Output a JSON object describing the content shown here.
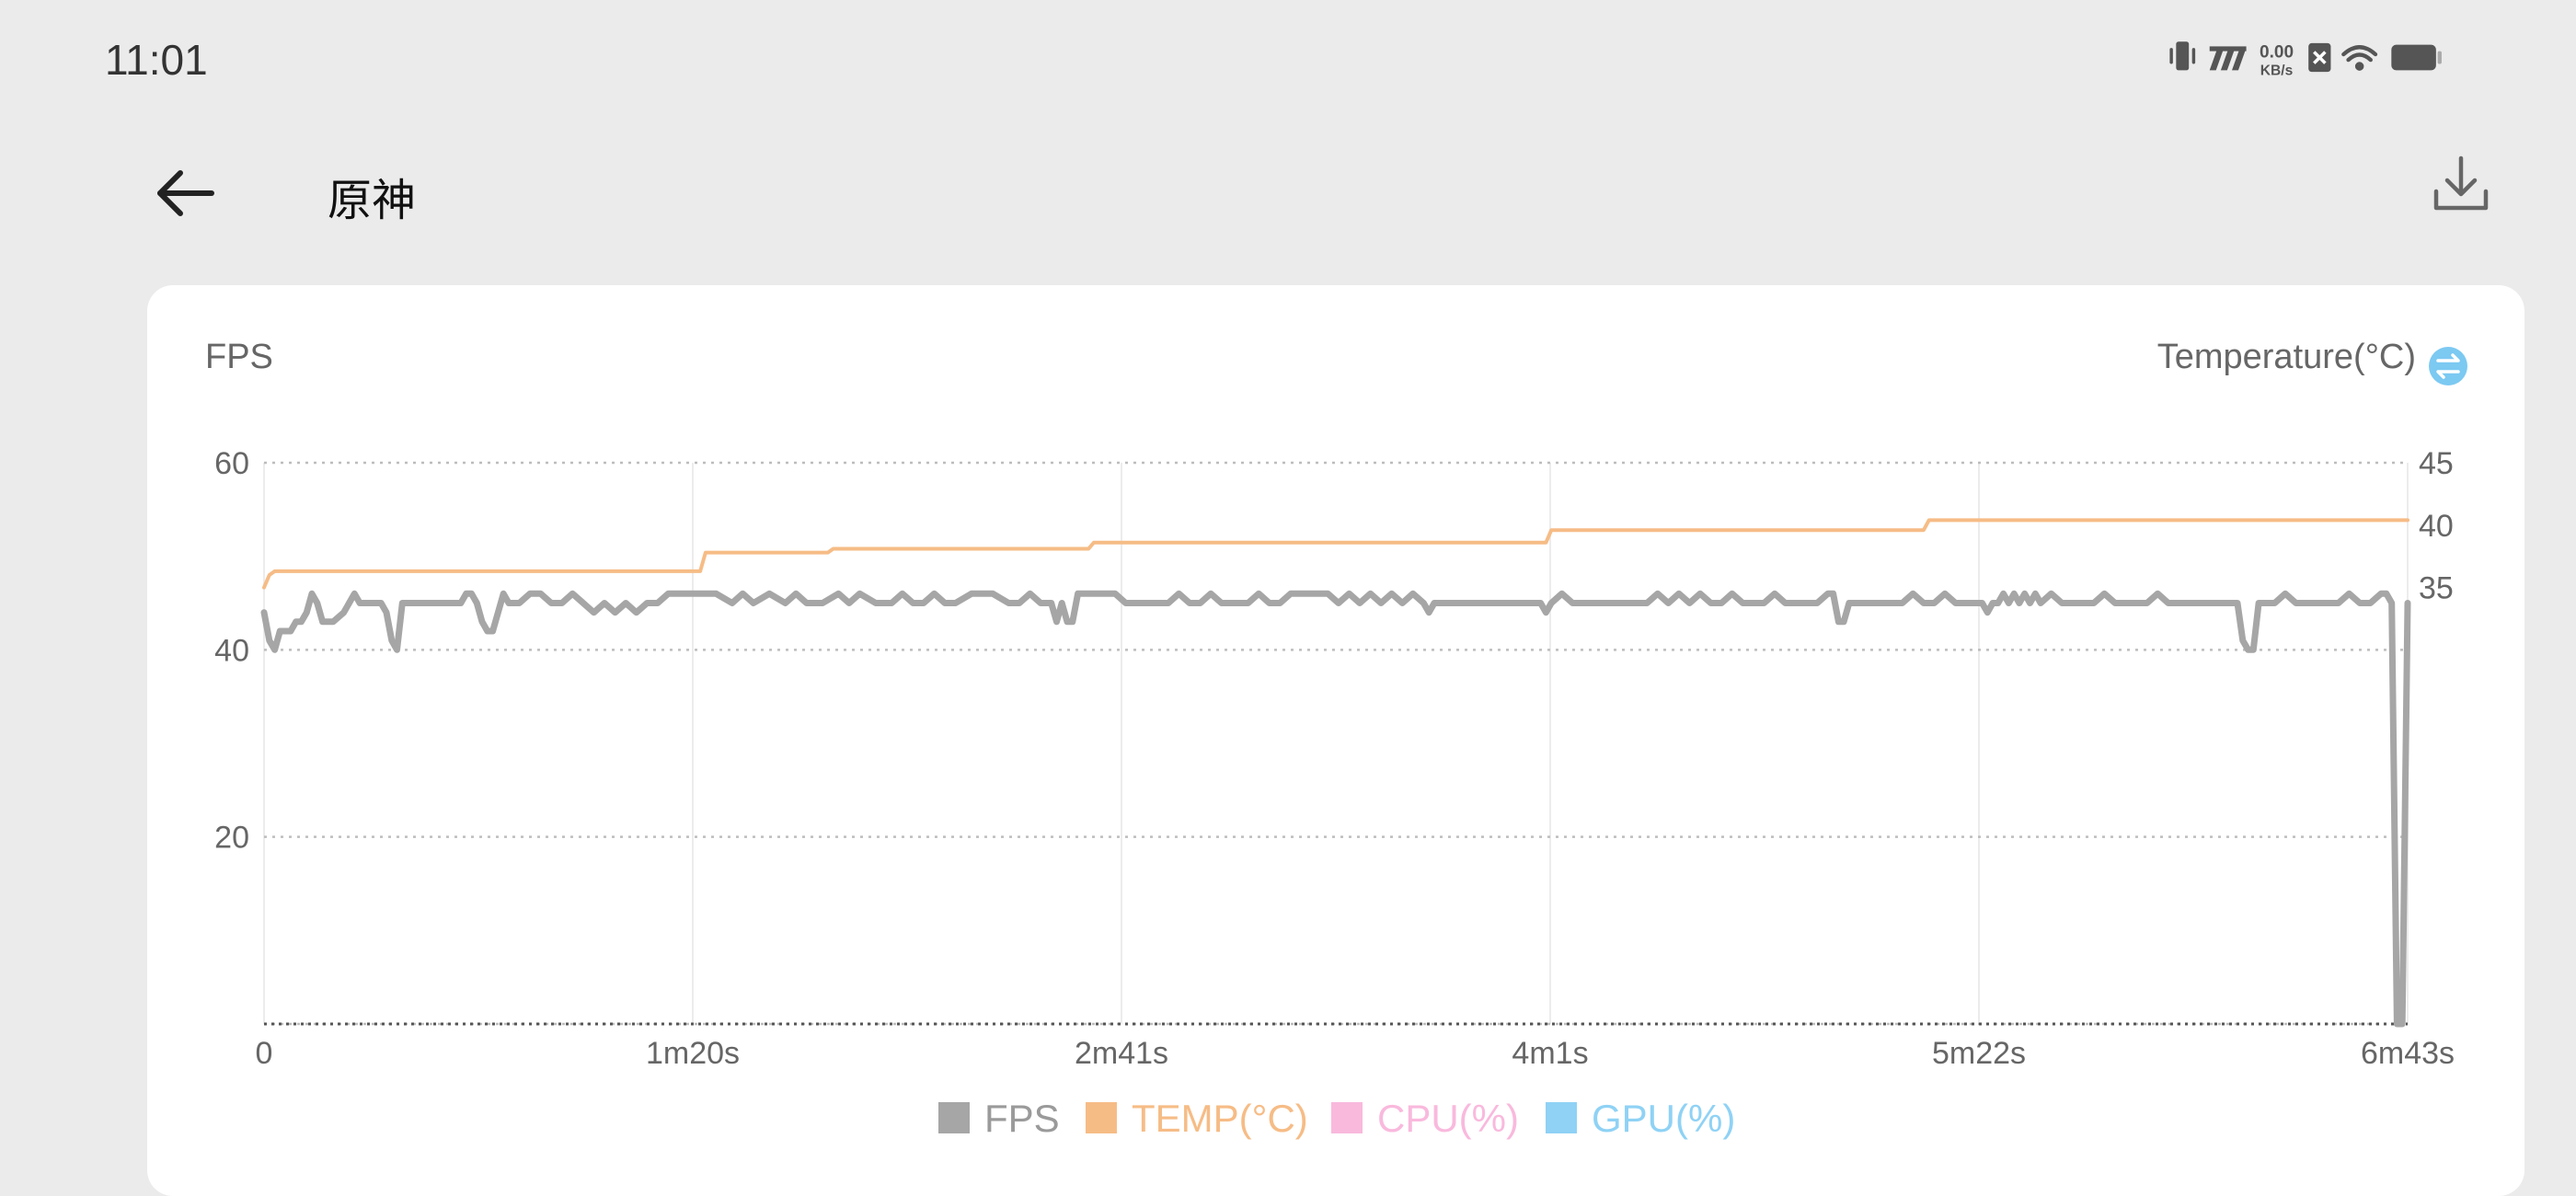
{
  "status_bar": {
    "time": "11:01",
    "net_speed_value": "0.00",
    "net_speed_unit": "KB/s",
    "icons": [
      "vibrate-icon",
      "signal-icon",
      "sim-x-icon",
      "wifi-icon",
      "battery-icon"
    ]
  },
  "header": {
    "title": "原神",
    "back_icon": "arrow-left-icon",
    "download_icon": "download-icon"
  },
  "chart_data": {
    "type": "line",
    "left_axis_label": "FPS",
    "right_axis_label": "Temperature(°C)",
    "right_axis_toggle_icon": "swap-icon",
    "x_tick_labels": [
      "0",
      "1m20s",
      "2m41s",
      "4m1s",
      "5m22s",
      "6m43s"
    ],
    "x_ticks_seconds": [
      0,
      80.6,
      161.2,
      241.8,
      322.4,
      403
    ],
    "xlim_seconds": [
      0,
      403
    ],
    "left_ticks": [
      "60",
      "40",
      "20"
    ],
    "left_tick_values": [
      60,
      40,
      20
    ],
    "ylim_left": [
      0,
      60
    ],
    "right_ticks": [
      "45",
      "40",
      "35"
    ],
    "right_tick_values": [
      45,
      40,
      35
    ],
    "ylim_right": [
      0,
      45
    ],
    "grid": true,
    "legend_position": "bottom-center",
    "series": [
      {
        "name": "FPS",
        "axis": "left",
        "color": "#a6a6a6",
        "points": [
          [
            0,
            44
          ],
          [
            1,
            41
          ],
          [
            2,
            40
          ],
          [
            3,
            42
          ],
          [
            5,
            42
          ],
          [
            6,
            43
          ],
          [
            7,
            43
          ],
          [
            8,
            44
          ],
          [
            9,
            46
          ],
          [
            10,
            45
          ],
          [
            11,
            43
          ],
          [
            13,
            43
          ],
          [
            15,
            44
          ],
          [
            16,
            45
          ],
          [
            17,
            46
          ],
          [
            18,
            45
          ],
          [
            20,
            45
          ],
          [
            22,
            45
          ],
          [
            23,
            44
          ],
          [
            24,
            41
          ],
          [
            25,
            40
          ],
          [
            26,
            45
          ],
          [
            30,
            45
          ],
          [
            35,
            45
          ],
          [
            37,
            45
          ],
          [
            38,
            46
          ],
          [
            39,
            46
          ],
          [
            40,
            45
          ],
          [
            41,
            43
          ],
          [
            42,
            42
          ],
          [
            43,
            42
          ],
          [
            44,
            44
          ],
          [
            45,
            46
          ],
          [
            46,
            45
          ],
          [
            48,
            45
          ],
          [
            50,
            46
          ],
          [
            52,
            46
          ],
          [
            54,
            45
          ],
          [
            56,
            45
          ],
          [
            58,
            46
          ],
          [
            60,
            45
          ],
          [
            62,
            44
          ],
          [
            64,
            45
          ],
          [
            66,
            44
          ],
          [
            68,
            45
          ],
          [
            70,
            44
          ],
          [
            72,
            45
          ],
          [
            74,
            45
          ],
          [
            76,
            46
          ],
          [
            80,
            46
          ],
          [
            85,
            46
          ],
          [
            88,
            45
          ],
          [
            90,
            46
          ],
          [
            92,
            45
          ],
          [
            95,
            46
          ],
          [
            98,
            45
          ],
          [
            100,
            46
          ],
          [
            102,
            45
          ],
          [
            105,
            45
          ],
          [
            108,
            46
          ],
          [
            110,
            45
          ],
          [
            112,
            46
          ],
          [
            115,
            45
          ],
          [
            118,
            45
          ],
          [
            120,
            46
          ],
          [
            122,
            45
          ],
          [
            124,
            45
          ],
          [
            126,
            46
          ],
          [
            128,
            45
          ],
          [
            130,
            45
          ],
          [
            133,
            46
          ],
          [
            137,
            46
          ],
          [
            140,
            45
          ],
          [
            142,
            45
          ],
          [
            144,
            46
          ],
          [
            146,
            45
          ],
          [
            148,
            45
          ],
          [
            149,
            43
          ],
          [
            150,
            45
          ],
          [
            151,
            43
          ],
          [
            152,
            43
          ],
          [
            153,
            46
          ],
          [
            157,
            46
          ],
          [
            160,
            46
          ],
          [
            162,
            45
          ],
          [
            165,
            45
          ],
          [
            168,
            45
          ],
          [
            170,
            45
          ],
          [
            172,
            46
          ],
          [
            174,
            45
          ],
          [
            176,
            45
          ],
          [
            178,
            46
          ],
          [
            180,
            45
          ],
          [
            183,
            45
          ],
          [
            185,
            45
          ],
          [
            187,
            46
          ],
          [
            189,
            45
          ],
          [
            191,
            45
          ],
          [
            193,
            46
          ],
          [
            196,
            46
          ],
          [
            200,
            46
          ],
          [
            202,
            45
          ],
          [
            204,
            46
          ],
          [
            206,
            45
          ],
          [
            208,
            46
          ],
          [
            210,
            45
          ],
          [
            212,
            46
          ],
          [
            214,
            45
          ],
          [
            216,
            46
          ],
          [
            218,
            45
          ],
          [
            219,
            44
          ],
          [
            220,
            45
          ],
          [
            222,
            45
          ],
          [
            225,
            45
          ],
          [
            228,
            45
          ],
          [
            230,
            45
          ],
          [
            232,
            45
          ],
          [
            234,
            45
          ],
          [
            236,
            45
          ],
          [
            238,
            45
          ],
          [
            240,
            45
          ],
          [
            241,
            44
          ],
          [
            242,
            45
          ],
          [
            244,
            46
          ],
          [
            246,
            45
          ],
          [
            250,
            45
          ],
          [
            253,
            45
          ],
          [
            256,
            45
          ],
          [
            260,
            45
          ],
          [
            262,
            46
          ],
          [
            264,
            45
          ],
          [
            266,
            46
          ],
          [
            268,
            45
          ],
          [
            270,
            46
          ],
          [
            272,
            45
          ],
          [
            274,
            45
          ],
          [
            276,
            46
          ],
          [
            278,
            45
          ],
          [
            280,
            45
          ],
          [
            282,
            45
          ],
          [
            284,
            46
          ],
          [
            286,
            45
          ],
          [
            288,
            45
          ],
          [
            290,
            45
          ],
          [
            292,
            45
          ],
          [
            294,
            46
          ],
          [
            295,
            46
          ],
          [
            296,
            43
          ],
          [
            297,
            43
          ],
          [
            298,
            45
          ],
          [
            300,
            45
          ],
          [
            303,
            45
          ],
          [
            306,
            45
          ],
          [
            308,
            45
          ],
          [
            310,
            46
          ],
          [
            312,
            45
          ],
          [
            314,
            45
          ],
          [
            316,
            46
          ],
          [
            318,
            45
          ],
          [
            320,
            45
          ],
          [
            322,
            45
          ],
          [
            323,
            45
          ],
          [
            324,
            44
          ],
          [
            325,
            45
          ],
          [
            326,
            45
          ],
          [
            327,
            46
          ],
          [
            328,
            45
          ],
          [
            329,
            46
          ],
          [
            330,
            45
          ],
          [
            331,
            46
          ],
          [
            332,
            45
          ],
          [
            333,
            46
          ],
          [
            334,
            45
          ],
          [
            336,
            46
          ],
          [
            338,
            45
          ],
          [
            340,
            45
          ],
          [
            342,
            45
          ],
          [
            344,
            45
          ],
          [
            346,
            46
          ],
          [
            348,
            45
          ],
          [
            350,
            45
          ],
          [
            352,
            45
          ],
          [
            354,
            45
          ],
          [
            356,
            46
          ],
          [
            358,
            45
          ],
          [
            360,
            45
          ],
          [
            362,
            45
          ],
          [
            364,
            45
          ],
          [
            366,
            45
          ],
          [
            368,
            45
          ],
          [
            370,
            45
          ],
          [
            371,
            45
          ],
          [
            372,
            41
          ],
          [
            373,
            40
          ],
          [
            374,
            40
          ],
          [
            375,
            45
          ],
          [
            378,
            45
          ],
          [
            380,
            46
          ],
          [
            382,
            45
          ],
          [
            385,
            45
          ],
          [
            388,
            45
          ],
          [
            390,
            45
          ],
          [
            392,
            46
          ],
          [
            394,
            45
          ],
          [
            396,
            45
          ],
          [
            398,
            46
          ],
          [
            399,
            46
          ],
          [
            400,
            45
          ],
          [
            401,
            0
          ],
          [
            402,
            0
          ],
          [
            403,
            45
          ]
        ]
      },
      {
        "name": "TEMP(°C)",
        "axis": "right",
        "color": "#f6bc86",
        "points": [
          [
            0,
            35
          ],
          [
            1,
            36
          ],
          [
            2,
            36.3
          ],
          [
            3,
            36.3
          ],
          [
            80,
            36.3
          ],
          [
            82,
            36.3
          ],
          [
            83,
            37.8
          ],
          [
            106,
            37.8
          ],
          [
            107,
            38.1
          ],
          [
            155,
            38.1
          ],
          [
            156,
            38.6
          ],
          [
            241,
            38.6
          ],
          [
            242,
            39.6
          ],
          [
            312,
            39.6
          ],
          [
            313,
            40.4
          ],
          [
            403,
            40.4
          ]
        ]
      },
      {
        "name": "CPU(%)",
        "axis": "none",
        "color": "#f9b9dd",
        "points": []
      },
      {
        "name": "GPU(%)",
        "axis": "none",
        "color": "#8fd2f5",
        "points": []
      }
    ]
  }
}
